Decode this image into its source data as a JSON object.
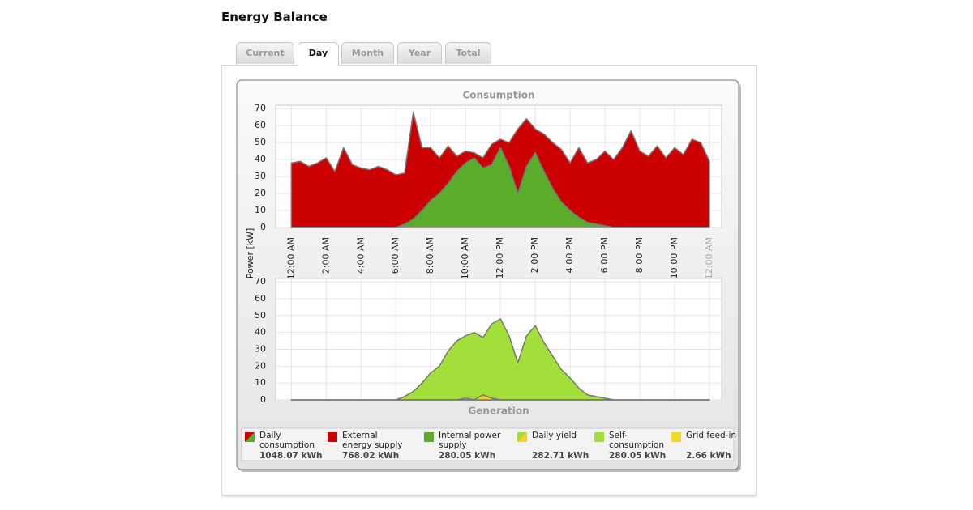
{
  "title": "Energy Balance",
  "tabs": [
    {
      "label": "Current",
      "active": false
    },
    {
      "label": "Day",
      "active": true
    },
    {
      "label": "Month",
      "active": false
    },
    {
      "label": "Year",
      "active": false
    },
    {
      "label": "Total",
      "active": false
    }
  ],
  "chart_data": [
    {
      "type": "area",
      "title": "Consumption",
      "ylabel": "Power [kW]",
      "stacked": true,
      "grid": true,
      "x": [
        0,
        0.5,
        1,
        1.5,
        2,
        2.5,
        3,
        3.5,
        4,
        4.5,
        5,
        5.5,
        6,
        6.5,
        7,
        7.5,
        8,
        8.5,
        9,
        9.5,
        10,
        10.5,
        11,
        11.5,
        12,
        12.5,
        13,
        13.5,
        14,
        14.5,
        15,
        15.5,
        16,
        16.5,
        17,
        17.5,
        18,
        18.5,
        19,
        19.5,
        20,
        20.5,
        21,
        21.5,
        22,
        22.5,
        23,
        23.5,
        24
      ],
      "xlim": [
        -0.9,
        24.7
      ],
      "xticks": [
        {
          "value": 0,
          "label": "12:00 AM"
        },
        {
          "value": 2,
          "label": "2:00 AM"
        },
        {
          "value": 4,
          "label": "4:00 AM"
        },
        {
          "value": 6,
          "label": "6:00 AM"
        },
        {
          "value": 8,
          "label": "8:00 AM"
        },
        {
          "value": 10,
          "label": "10:00 AM"
        },
        {
          "value": 12,
          "label": "12:00 PM"
        },
        {
          "value": 14,
          "label": "2:00 PM"
        },
        {
          "value": 16,
          "label": "4:00 PM"
        },
        {
          "value": 18,
          "label": "6:00 PM"
        },
        {
          "value": 20,
          "label": "8:00 PM"
        },
        {
          "value": 22,
          "label": "10:00 PM"
        },
        {
          "value": 24,
          "label": "12:00 AM"
        }
      ],
      "ylim": [
        0,
        72
      ],
      "yticks": [
        0,
        10,
        20,
        30,
        40,
        50,
        60,
        70
      ],
      "series": [
        {
          "color": "#5aac2a",
          "values": [
            0,
            0,
            0,
            0,
            0,
            0,
            0,
            0,
            0,
            0,
            0,
            0,
            0,
            2,
            5,
            10,
            16,
            20,
            26,
            33,
            38,
            41,
            35,
            37,
            47,
            36,
            20,
            36,
            44,
            33,
            23,
            15,
            10,
            6,
            3,
            2,
            1,
            0,
            0,
            0,
            0,
            0,
            0,
            0,
            0,
            0,
            0,
            0,
            0
          ]
        },
        {
          "color": "#cc0000",
          "values": [
            38,
            39,
            36,
            38,
            41,
            33,
            47,
            37,
            35,
            34,
            36,
            34,
            31,
            30,
            63,
            37,
            31,
            21,
            22,
            9,
            7,
            3,
            6,
            12,
            5,
            14,
            38,
            28,
            14,
            22,
            27,
            31,
            28,
            41,
            35,
            38,
            44,
            40,
            47,
            57,
            45,
            42,
            48,
            41,
            47,
            43,
            52,
            50,
            39
          ]
        }
      ]
    },
    {
      "type": "area",
      "title": "Generation",
      "stacked": false,
      "grid": true,
      "x": [
        0,
        0.5,
        1,
        1.5,
        2,
        2.5,
        3,
        3.5,
        4,
        4.5,
        5,
        5.5,
        6,
        6.5,
        7,
        7.5,
        8,
        8.5,
        9,
        9.5,
        10,
        10.5,
        11,
        11.5,
        12,
        12.5,
        13,
        13.5,
        14,
        14.5,
        15,
        15.5,
        16,
        16.5,
        17,
        17.5,
        18,
        18.5,
        19,
        19.5,
        20,
        20.5,
        21,
        21.5,
        22,
        22.5,
        23,
        23.5,
        24
      ],
      "xlim": [
        -0.9,
        24.7
      ],
      "xgrid": [
        0,
        2,
        4,
        6,
        8,
        10,
        12,
        14,
        16,
        18,
        20,
        22,
        24
      ],
      "ylim": [
        0,
        72
      ],
      "yticks": [
        0,
        10,
        20,
        30,
        40,
        50,
        60,
        70
      ],
      "series": [
        {
          "color": "#a3df3a",
          "values": [
            0,
            0,
            0,
            0,
            0,
            0,
            0,
            0,
            0,
            0,
            0,
            0,
            0,
            2,
            5,
            10,
            16,
            20,
            29,
            35,
            38,
            40,
            37,
            45,
            48,
            38,
            22,
            38,
            44,
            34,
            26,
            18,
            13,
            7,
            3,
            2,
            1,
            0,
            0,
            0,
            0,
            0,
            0,
            0,
            0,
            0,
            0,
            0,
            0
          ]
        },
        {
          "color": "#f5d623",
          "values": [
            0,
            0,
            0,
            0,
            0,
            0,
            0,
            0,
            0,
            0,
            0,
            0,
            0,
            0,
            0,
            0,
            0,
            0,
            0,
            0,
            1,
            0,
            3,
            1,
            0,
            0,
            0,
            0,
            0,
            0,
            0,
            0,
            0,
            0,
            0,
            0,
            0,
            0,
            0,
            0,
            0,
            0,
            0,
            0,
            0,
            0,
            0,
            0,
            0
          ]
        }
      ]
    }
  ],
  "legend": [
    {
      "label": "Daily consumption",
      "value": "1048.07 kWh",
      "colors": [
        "#cc0000",
        "#5aac2a"
      ]
    },
    {
      "label": "External energy supply",
      "value": "768.02 kWh",
      "colors": [
        "#cc0000"
      ]
    },
    {
      "label": "Internal power supply",
      "value": "280.05 kWh",
      "colors": [
        "#5aac2a"
      ]
    },
    {
      "label": "Daily yield",
      "value": "282.71 kWh",
      "colors": [
        "#a3df3a",
        "#f5d623"
      ]
    },
    {
      "label": "Self-consumption",
      "value": "280.05 kWh",
      "colors": [
        "#a3df3a"
      ]
    },
    {
      "label": "Grid feed-in",
      "value": "2.66 kWh",
      "colors": [
        "#f5d623"
      ]
    }
  ]
}
